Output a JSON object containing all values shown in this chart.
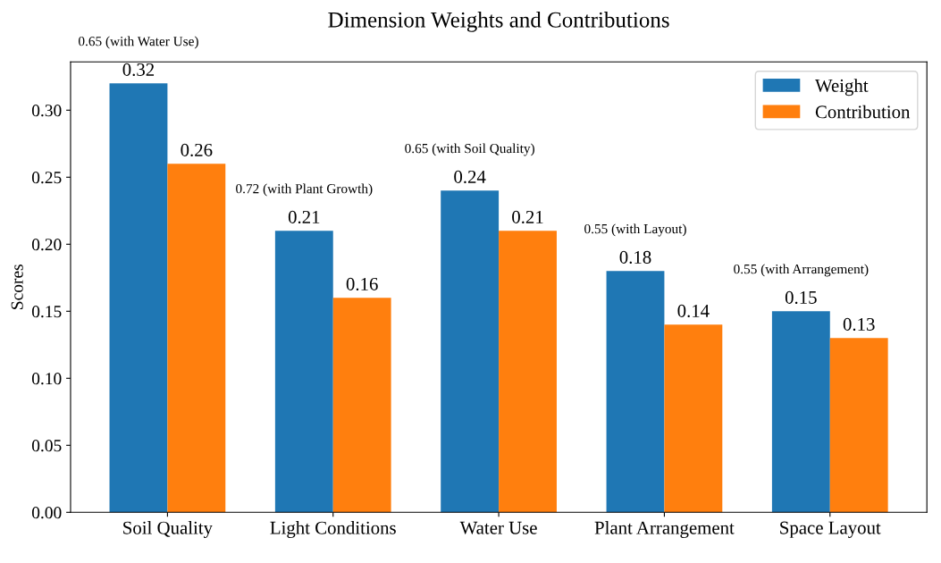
{
  "chart_data": {
    "type": "bar",
    "title": "Dimension Weights and Contributions",
    "ylabel": "Scores",
    "categories": [
      "Soil Quality",
      "Light Conditions",
      "Water Use",
      "Plant Arrangement",
      "Space Layout"
    ],
    "series": [
      {
        "name": "Weight",
        "color": "#1f77b4",
        "values": [
          0.32,
          0.21,
          0.24,
          0.18,
          0.15
        ]
      },
      {
        "name": "Contribution",
        "color": "#ff7f0e",
        "values": [
          0.26,
          0.16,
          0.21,
          0.14,
          0.13
        ]
      }
    ],
    "data_labels": true,
    "annotations": [
      {
        "text": "0.65 (with Water Use)",
        "x": "Soil Quality",
        "y": 0.32
      },
      {
        "text": "0.72 (with Plant Growth)",
        "x": "Light Conditions",
        "y": 0.21
      },
      {
        "text": "0.65 (with Soil Quality)",
        "x": "Water Use",
        "y": 0.24
      },
      {
        "text": "0.55 (with Layout)",
        "x": "Plant Arrangement",
        "y": 0.18
      },
      {
        "text": "0.55 (with Arrangement)",
        "x": "Space Layout",
        "y": 0.15
      }
    ],
    "ylim": [
      0,
      0.336
    ],
    "yticks": [
      {
        "value": 0,
        "label": "0.00"
      },
      {
        "value": 0.05,
        "label": "0.05"
      },
      {
        "value": 0.1,
        "label": "0.10"
      },
      {
        "value": 0.15,
        "label": "0.15"
      },
      {
        "value": 0.2,
        "label": "0.20"
      },
      {
        "value": 0.25,
        "label": "0.25"
      },
      {
        "value": 0.3,
        "label": "0.30"
      }
    ],
    "legend": "top right",
    "grid": false
  }
}
